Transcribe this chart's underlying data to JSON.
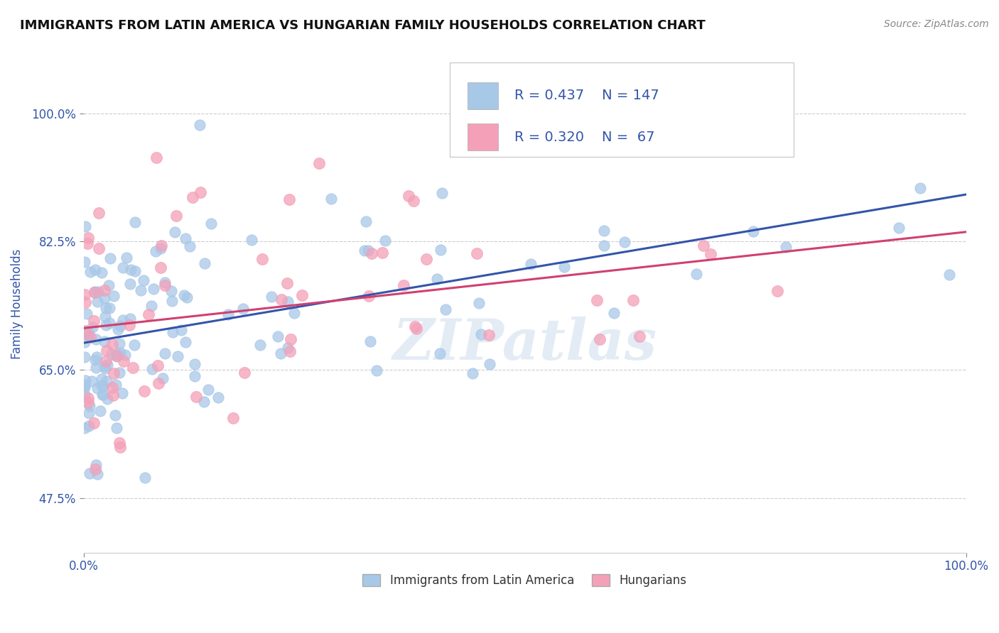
{
  "title": "IMMIGRANTS FROM LATIN AMERICA VS HUNGARIAN FAMILY HOUSEHOLDS CORRELATION CHART",
  "source": "Source: ZipAtlas.com",
  "ylabel": "Family Households",
  "xlim": [
    0.0,
    100.0
  ],
  "ylim": [
    40.0,
    108.0
  ],
  "ytick_values": [
    47.5,
    65.0,
    82.5,
    100.0
  ],
  "legend_labels": [
    "Immigrants from Latin America",
    "Hungarians"
  ],
  "blue_color": "#a8c8e8",
  "pink_color": "#f4a0b8",
  "blue_line_color": "#3355aa",
  "pink_line_color": "#d04070",
  "R_blue": 0.437,
  "N_blue": 147,
  "R_pink": 0.32,
  "N_pink": 67,
  "watermark": "ZIPatlas",
  "background_color": "#ffffff",
  "grid_color": "#cccccc",
  "title_color": "#111111",
  "axis_label_color": "#3355aa",
  "tick_color": "#3355aa",
  "seed_blue": 12,
  "seed_pink": 99
}
